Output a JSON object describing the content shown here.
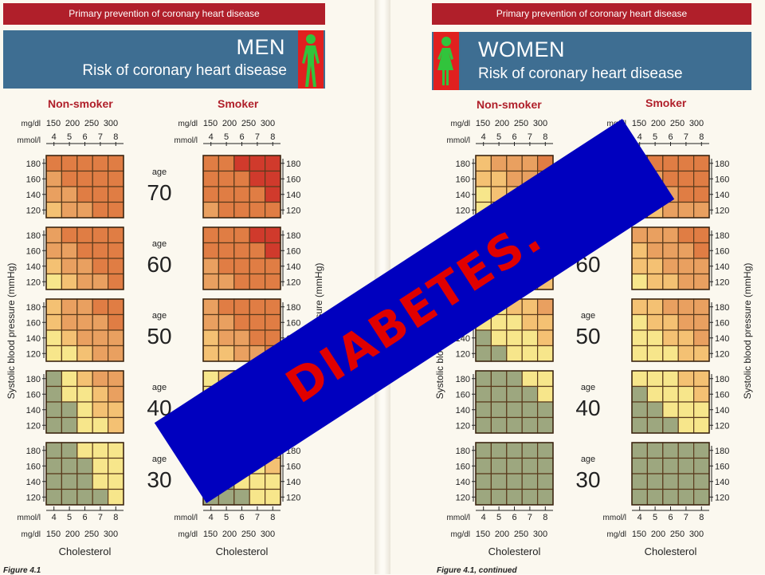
{
  "header": {
    "left_bar": "Primary prevention of coronary heart disease",
    "right_bar": "Primary prevention of coronary heart disease"
  },
  "men": {
    "title": "MEN",
    "subtitle": "Risk of coronary heart disease",
    "figure_icon": "man-figure-icon"
  },
  "women": {
    "title": "WOMEN",
    "subtitle": "Risk of coronary heart disease",
    "figure_icon": "woman-figure-icon"
  },
  "columns": {
    "non_smoker": "Non-smoker",
    "smoker": "Smoker"
  },
  "axis": {
    "mgdl_label": "mg/dl",
    "mmol_label": "mmol/l",
    "mgdl_ticks": [
      "150",
      "200",
      "250",
      "300"
    ],
    "mmol_ticks": [
      "4",
      "5",
      "6",
      "7",
      "8"
    ],
    "bp_ticks": [
      "180",
      "160",
      "140",
      "120"
    ],
    "age_word": "age",
    "ages": [
      "70",
      "60",
      "50",
      "40",
      "30"
    ],
    "ylabel": "Systolic blood pressure (mmHg)",
    "xlabel": "Cholesterol"
  },
  "footer": {
    "left": "Figure 4.1",
    "right": "Figure 4.1, continued"
  },
  "overlay": {
    "text": "DIABETES."
  },
  "chart_data": {
    "type": "heatmap",
    "risk_level_colors": {
      "1": "#9da77f",
      "2": "#f7e68b",
      "3": "#f4c173",
      "4": "#e9a060",
      "5": "#e07d44",
      "6": "#d03a2c"
    },
    "rows": [
      "180",
      "160",
      "140",
      "120"
    ],
    "cols": [
      "4",
      "5",
      "6",
      "7",
      "8"
    ],
    "panels": {
      "men_nonsmoker": [
        [
          [
            5,
            5,
            5,
            5,
            5
          ],
          [
            4,
            5,
            5,
            5,
            5
          ],
          [
            4,
            4,
            5,
            5,
            5
          ],
          [
            3,
            4,
            4,
            5,
            5
          ]
        ],
        [
          [
            4,
            5,
            5,
            5,
            5
          ],
          [
            4,
            4,
            5,
            5,
            5
          ],
          [
            3,
            4,
            4,
            5,
            5
          ],
          [
            2,
            3,
            4,
            4,
            5
          ]
        ],
        [
          [
            3,
            4,
            4,
            5,
            5
          ],
          [
            3,
            4,
            4,
            4,
            5
          ],
          [
            2,
            3,
            4,
            4,
            4
          ],
          [
            2,
            2,
            3,
            4,
            4
          ]
        ],
        [
          [
            1,
            2,
            3,
            4,
            4
          ],
          [
            1,
            2,
            2,
            3,
            4
          ],
          [
            1,
            1,
            2,
            3,
            3
          ],
          [
            1,
            1,
            2,
            2,
            3
          ]
        ],
        [
          [
            1,
            1,
            2,
            2,
            2
          ],
          [
            1,
            1,
            1,
            2,
            2
          ],
          [
            1,
            1,
            1,
            2,
            2
          ],
          [
            1,
            1,
            1,
            1,
            2
          ]
        ]
      ],
      "men_smoker": [
        [
          [
            5,
            5,
            6,
            6,
            6
          ],
          [
            5,
            5,
            5,
            6,
            6
          ],
          [
            5,
            5,
            5,
            5,
            6
          ],
          [
            4,
            5,
            5,
            5,
            5
          ]
        ],
        [
          [
            5,
            5,
            5,
            6,
            6
          ],
          [
            5,
            5,
            5,
            5,
            6
          ],
          [
            4,
            5,
            5,
            5,
            5
          ],
          [
            4,
            4,
            5,
            5,
            5
          ]
        ],
        [
          [
            4,
            5,
            5,
            5,
            5
          ],
          [
            4,
            4,
            5,
            5,
            5
          ],
          [
            3,
            4,
            4,
            5,
            5
          ],
          [
            3,
            3,
            4,
            4,
            5
          ]
        ],
        [
          [
            2,
            3,
            4,
            4,
            5
          ],
          [
            2,
            3,
            3,
            4,
            4
          ],
          [
            2,
            2,
            3,
            3,
            4
          ],
          [
            1,
            2,
            2,
            3,
            3
          ]
        ],
        [
          [
            2,
            2,
            2,
            3,
            3
          ],
          [
            1,
            2,
            2,
            2,
            3
          ],
          [
            1,
            1,
            2,
            2,
            2
          ],
          [
            1,
            1,
            1,
            2,
            2
          ]
        ]
      ],
      "women_nonsmoker": [
        [
          [
            3,
            4,
            4,
            4,
            5
          ],
          [
            3,
            3,
            4,
            4,
            4
          ],
          [
            2,
            3,
            3,
            4,
            4
          ],
          [
            2,
            2,
            3,
            3,
            4
          ]
        ],
        [
          [
            3,
            3,
            4,
            4,
            4
          ],
          [
            2,
            3,
            3,
            4,
            4
          ],
          [
            2,
            2,
            3,
            3,
            4
          ],
          [
            2,
            2,
            2,
            3,
            3
          ]
        ],
        [
          [
            2,
            2,
            3,
            3,
            4
          ],
          [
            2,
            2,
            2,
            3,
            3
          ],
          [
            1,
            2,
            2,
            2,
            3
          ],
          [
            1,
            1,
            2,
            2,
            2
          ]
        ],
        [
          [
            1,
            1,
            1,
            2,
            2
          ],
          [
            1,
            1,
            1,
            1,
            2
          ],
          [
            1,
            1,
            1,
            1,
            1
          ],
          [
            1,
            1,
            1,
            1,
            1
          ]
        ],
        [
          [
            1,
            1,
            1,
            1,
            1
          ],
          [
            1,
            1,
            1,
            1,
            1
          ],
          [
            1,
            1,
            1,
            1,
            1
          ],
          [
            1,
            1,
            1,
            1,
            1
          ]
        ]
      ],
      "women_smoker": [
        [
          [
            4,
            5,
            5,
            5,
            5
          ],
          [
            4,
            4,
            5,
            5,
            5
          ],
          [
            3,
            4,
            4,
            5,
            5
          ],
          [
            3,
            3,
            4,
            4,
            4
          ]
        ],
        [
          [
            4,
            4,
            4,
            5,
            5
          ],
          [
            3,
            4,
            4,
            4,
            5
          ],
          [
            3,
            3,
            4,
            4,
            4
          ],
          [
            2,
            3,
            3,
            4,
            4
          ]
        ],
        [
          [
            3,
            3,
            4,
            4,
            4
          ],
          [
            2,
            3,
            3,
            4,
            4
          ],
          [
            2,
            2,
            3,
            3,
            4
          ],
          [
            2,
            2,
            2,
            3,
            3
          ]
        ],
        [
          [
            2,
            2,
            2,
            3,
            3
          ],
          [
            1,
            2,
            2,
            2,
            3
          ],
          [
            1,
            1,
            2,
            2,
            2
          ],
          [
            1,
            1,
            1,
            2,
            2
          ]
        ],
        [
          [
            1,
            1,
            1,
            1,
            1
          ],
          [
            1,
            1,
            1,
            1,
            1
          ],
          [
            1,
            1,
            1,
            1,
            1
          ],
          [
            1,
            1,
            1,
            1,
            1
          ]
        ]
      ]
    }
  }
}
